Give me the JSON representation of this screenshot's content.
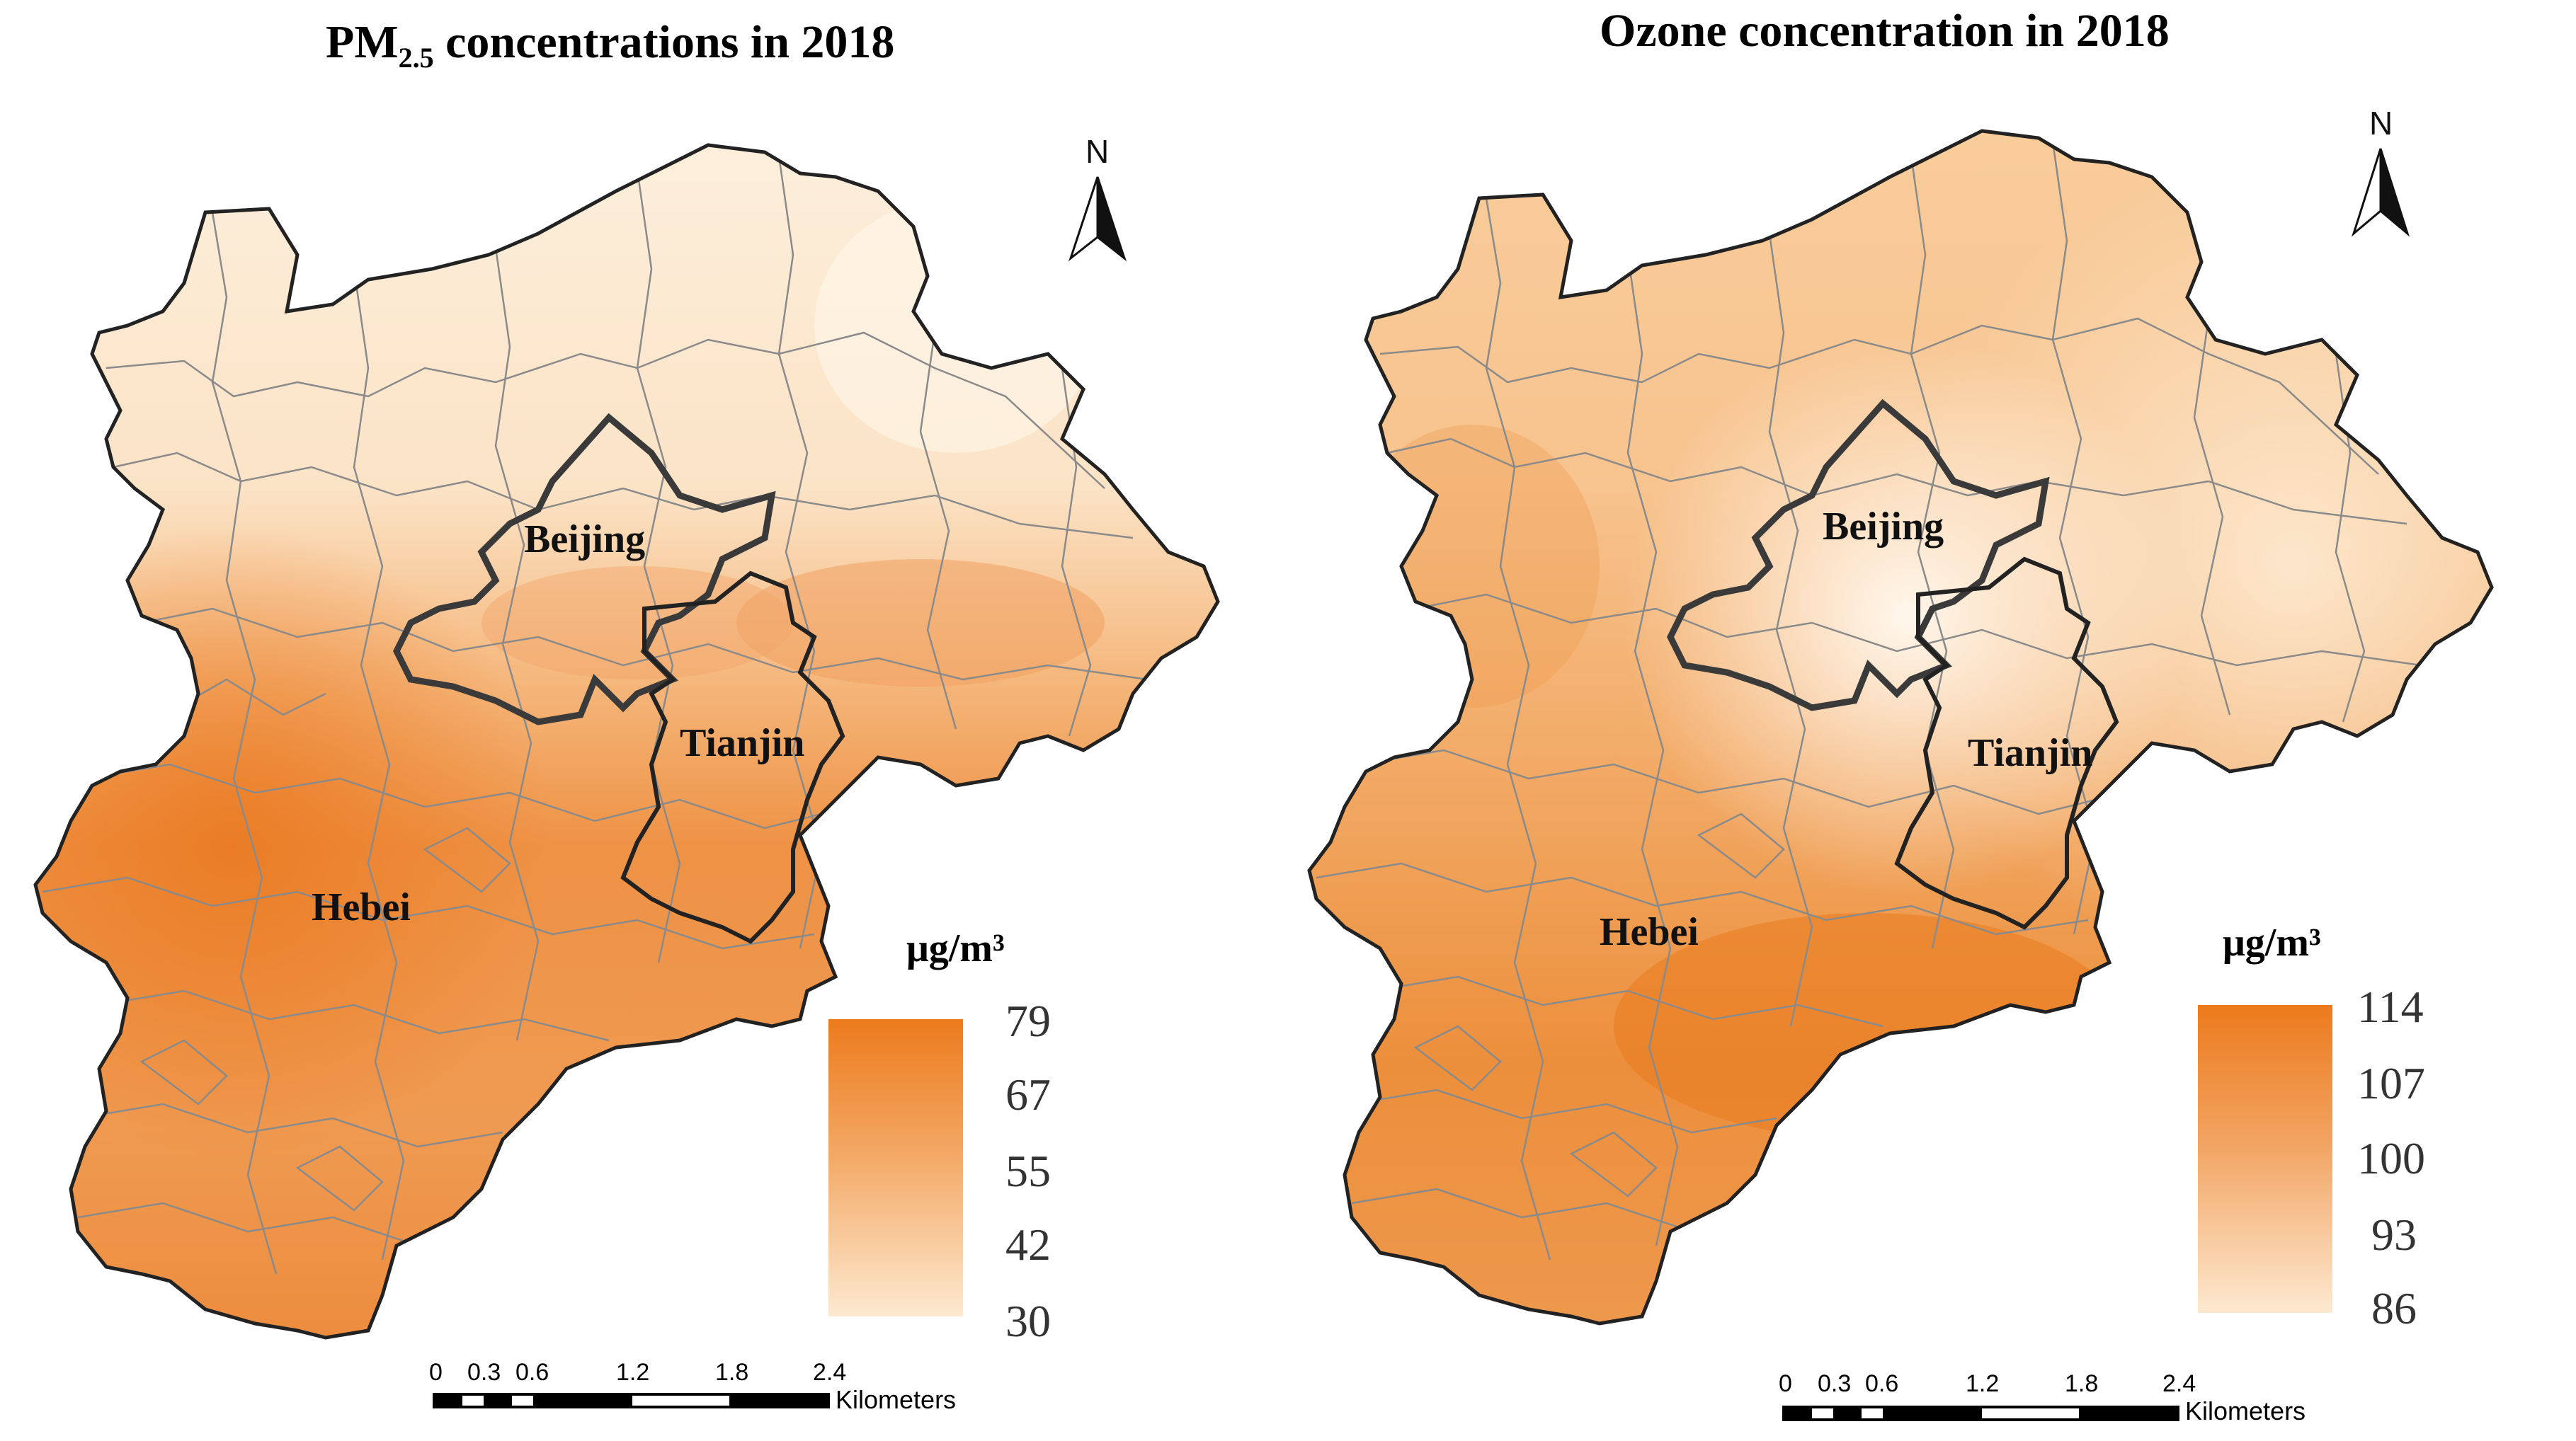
{
  "left_map": {
    "title_main": "PM",
    "title_sub": "2.5",
    "title_rest": " concentrations in 2018",
    "regions": {
      "beijing": "Beijing",
      "tianjin": "Tianjin",
      "hebei": "Hebei"
    },
    "north": "N",
    "legend": {
      "unit": "μg/m³",
      "ticks": [
        "79",
        "67",
        "55",
        "42",
        "30"
      ],
      "max": 79,
      "min": 30,
      "color_high": "#ec7a1c",
      "color_low": "#fde9d0"
    },
    "scale_bar": {
      "labels": [
        "0",
        "0.3",
        "0.6",
        "1.2",
        "1.8",
        "2.4"
      ],
      "unit": "Kilometers"
    }
  },
  "right_map": {
    "title": "Ozone concentration in 2018",
    "regions": {
      "beijing": "Beijing",
      "tianjin": "Tianjin",
      "hebei": "Hebei"
    },
    "north": "N",
    "legend": {
      "unit": "μg/m³",
      "ticks": [
        "114",
        "107",
        "100",
        "93",
        "86"
      ],
      "max": 114,
      "min": 86,
      "color_high": "#ec7a1c",
      "color_low": "#fde9d0"
    },
    "scale_bar": {
      "labels": [
        "0",
        "0.3",
        "0.6",
        "1.2",
        "1.8",
        "2.4"
      ],
      "unit": "Kilometers"
    }
  },
  "colors": {
    "boundary": "#222222",
    "county_lines": "#8a8a8a",
    "pm_low": "#fbe1c2",
    "pm_high": "#ec8a3a",
    "o3_low": "#fdf0de",
    "o3_high": "#ee8f40"
  }
}
